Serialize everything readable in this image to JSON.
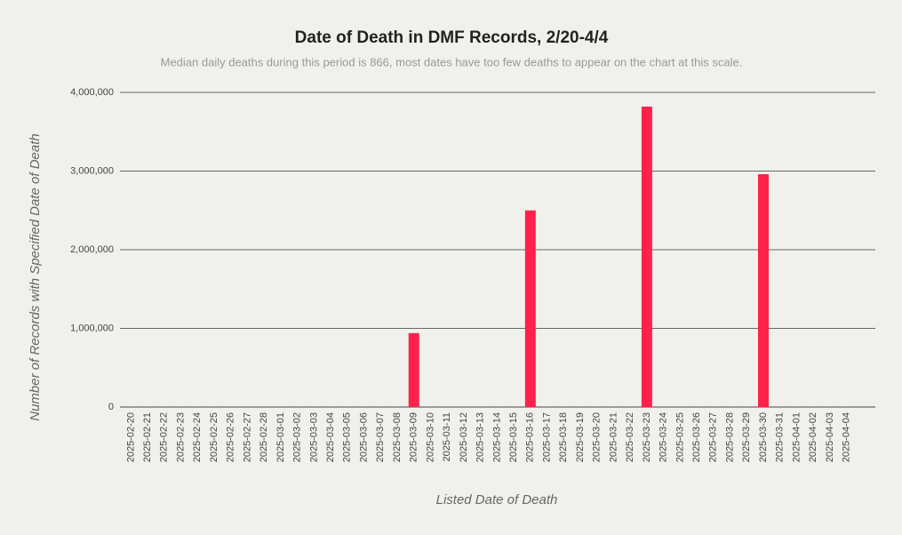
{
  "chart_data": {
    "type": "bar",
    "title": "Date of Death in DMF Records, 2/20-4/4",
    "subtitle": "Median daily deaths during this period is 866, most dates have too few deaths to appear on the chart at this scale.",
    "x_label": "Listed Date of Death",
    "y_label": "Number of Records with Specified Date of Death",
    "categories": [
      "2025-02-20",
      "2025-02-21",
      "2025-02-22",
      "2025-02-23",
      "2025-02-24",
      "2025-02-25",
      "2025-02-26",
      "2025-02-27",
      "2025-02-28",
      "2025-03-01",
      "2025-03-02",
      "2025-03-03",
      "2025-03-04",
      "2025-03-05",
      "2025-03-06",
      "2025-03-07",
      "2025-03-08",
      "2025-03-09",
      "2025-03-10",
      "2025-03-11",
      "2025-03-12",
      "2025-03-13",
      "2025-03-14",
      "2025-03-15",
      "2025-03-16",
      "2025-03-17",
      "2025-03-18",
      "2025-03-19",
      "2025-03-20",
      "2025-03-21",
      "2025-03-22",
      "2025-03-23",
      "2025-03-24",
      "2025-03-25",
      "2025-03-26",
      "2025-03-27",
      "2025-03-28",
      "2025-03-29",
      "2025-03-30",
      "2025-03-31",
      "2025-04-01",
      "2025-04-02",
      "2025-04-03",
      "2025-04-04"
    ],
    "values": [
      866,
      866,
      866,
      866,
      866,
      866,
      866,
      866,
      866,
      866,
      866,
      866,
      866,
      866,
      866,
      866,
      866,
      940000,
      866,
      866,
      866,
      866,
      866,
      866,
      2500000,
      866,
      866,
      866,
      866,
      866,
      866,
      3820000,
      866,
      866,
      866,
      866,
      866,
      866,
      2960000,
      866,
      866,
      866,
      866,
      866
    ],
    "color": "#ff2149",
    "ylim": [
      0,
      4000000
    ],
    "yticks": [
      0,
      {
        "value": 1000000,
        "label": "1,000,000"
      },
      {
        "value": 2000000,
        "label": "2,000,000"
      },
      {
        "value": 3000000,
        "label": "3,000,000"
      },
      {
        "value": 4000000,
        "label": "4,000,000"
      }
    ],
    "grid": true
  }
}
